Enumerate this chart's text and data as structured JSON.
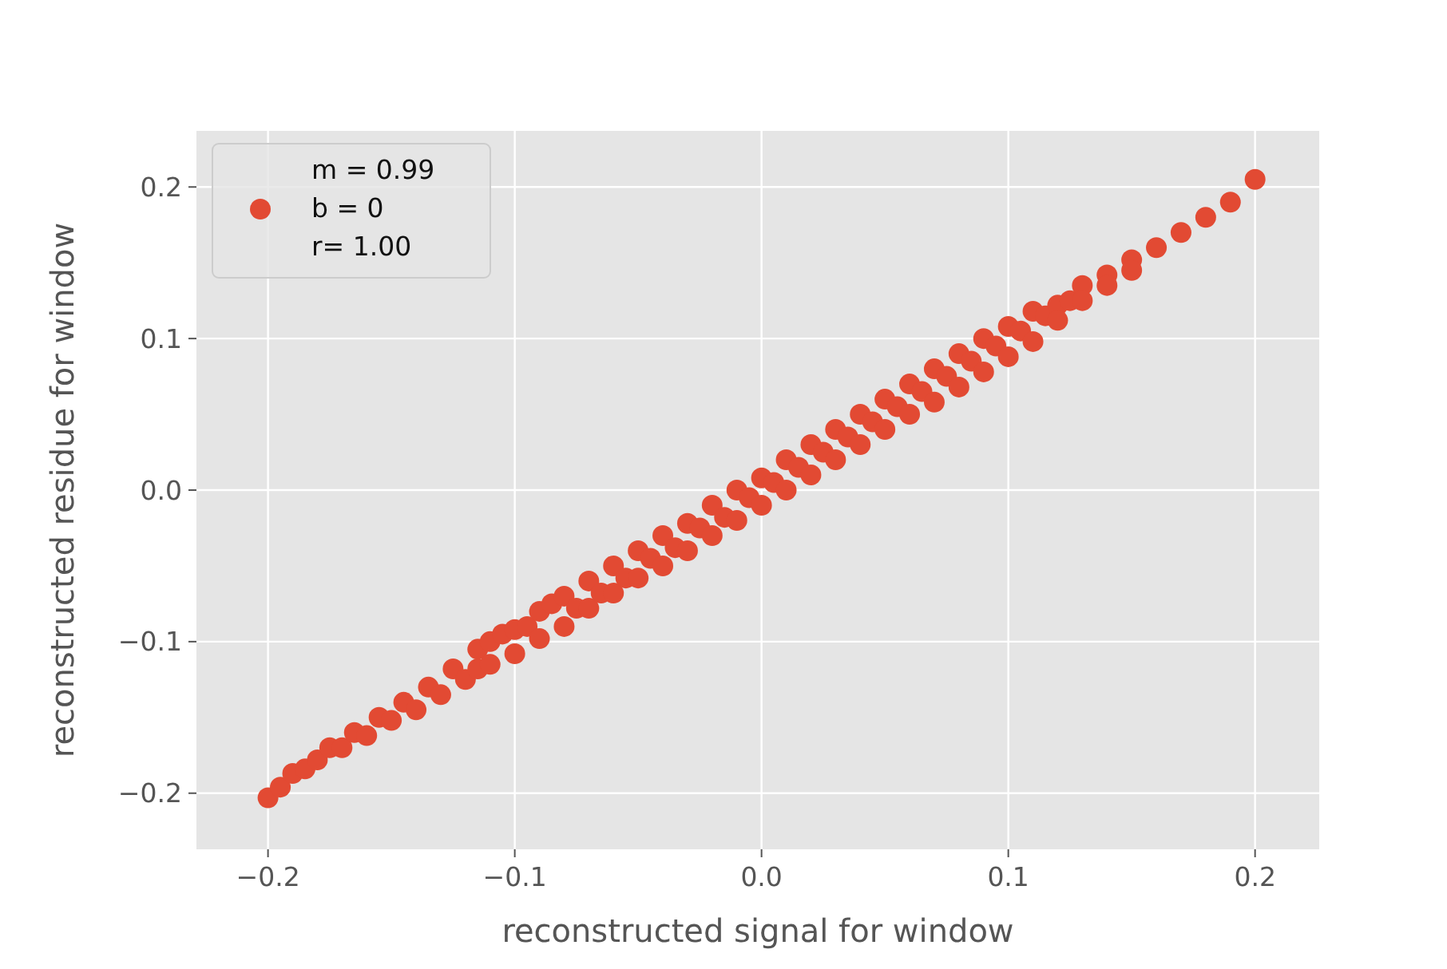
{
  "chart_data": {
    "type": "scatter",
    "xlabel": "reconstructed signal for window",
    "ylabel": "reconstructed residue for window",
    "xlim": [
      -0.229,
      0.226
    ],
    "ylim": [
      -0.237,
      0.237
    ],
    "xticks": [
      {
        "value": -0.2,
        "label": "−0.2"
      },
      {
        "value": -0.1,
        "label": "−0.1"
      },
      {
        "value": 0,
        "label": "0.0"
      },
      {
        "value": 0.1,
        "label": "0.1"
      },
      {
        "value": 0.2,
        "label": "0.2"
      }
    ],
    "yticks": [
      {
        "value": -0.2,
        "label": "−0.2"
      },
      {
        "value": -0.1,
        "label": "−0.1"
      },
      {
        "value": 0,
        "label": "0.0"
      },
      {
        "value": 0.1,
        "label": "0.1"
      },
      {
        "value": 0.2,
        "label": "0.2"
      }
    ],
    "grid": true,
    "legend": "top left",
    "marker": "circle",
    "series": [
      {
        "name": "m = 0.99\nb = 0\nr= 1.00",
        "color": "#e24a33",
        "x": [
          -0.2,
          -0.195,
          -0.19,
          -0.185,
          -0.18,
          -0.175,
          -0.17,
          -0.165,
          -0.16,
          -0.155,
          -0.15,
          -0.145,
          -0.14,
          -0.135,
          -0.13,
          -0.125,
          -0.12,
          -0.115,
          -0.115,
          -0.11,
          -0.11,
          -0.105,
          -0.1,
          -0.1,
          -0.095,
          -0.09,
          -0.09,
          -0.085,
          -0.08,
          -0.08,
          -0.075,
          -0.07,
          -0.07,
          -0.065,
          -0.06,
          -0.06,
          -0.055,
          -0.05,
          -0.05,
          -0.045,
          -0.04,
          -0.04,
          -0.035,
          -0.03,
          -0.03,
          -0.025,
          -0.02,
          -0.02,
          -0.015,
          -0.01,
          -0.01,
          -0.005,
          0,
          0,
          0.005,
          0.01,
          0.01,
          0.015,
          0.02,
          0.02,
          0.025,
          0.03,
          0.03,
          0.035,
          0.04,
          0.04,
          0.045,
          0.05,
          0.05,
          0.055,
          0.06,
          0.06,
          0.065,
          0.07,
          0.07,
          0.075,
          0.08,
          0.08,
          0.085,
          0.09,
          0.09,
          0.095,
          0.1,
          0.1,
          0.105,
          0.11,
          0.11,
          0.115,
          0.12,
          0.12,
          0.125,
          0.13,
          0.13,
          0.14,
          0.14,
          0.15,
          0.15,
          0.16,
          0.17,
          0.18,
          0.19,
          0.2
        ],
        "values": [
          -0.203,
          -0.196,
          -0.187,
          -0.184,
          -0.178,
          -0.17,
          -0.17,
          -0.16,
          -0.162,
          -0.15,
          -0.152,
          -0.14,
          -0.145,
          -0.13,
          -0.135,
          -0.118,
          -0.125,
          -0.105,
          -0.118,
          -0.1,
          -0.115,
          -0.095,
          -0.108,
          -0.092,
          -0.09,
          -0.098,
          -0.08,
          -0.075,
          -0.09,
          -0.07,
          -0.078,
          -0.06,
          -0.078,
          -0.068,
          -0.05,
          -0.068,
          -0.058,
          -0.04,
          -0.058,
          -0.045,
          -0.03,
          -0.05,
          -0.038,
          -0.022,
          -0.04,
          -0.025,
          -0.01,
          -0.03,
          -0.018,
          0,
          -0.02,
          -0.005,
          0.008,
          -0.01,
          0.005,
          0.02,
          0,
          0.015,
          0.03,
          0.01,
          0.025,
          0.04,
          0.02,
          0.035,
          0.05,
          0.03,
          0.045,
          0.06,
          0.04,
          0.055,
          0.07,
          0.05,
          0.065,
          0.08,
          0.058,
          0.075,
          0.09,
          0.068,
          0.085,
          0.1,
          0.078,
          0.095,
          0.108,
          0.088,
          0.105,
          0.118,
          0.098,
          0.115,
          0.122,
          0.112,
          0.125,
          0.135,
          0.125,
          0.142,
          0.135,
          0.152,
          0.145,
          0.16,
          0.17,
          0.18,
          0.19,
          0.205
        ]
      }
    ]
  }
}
